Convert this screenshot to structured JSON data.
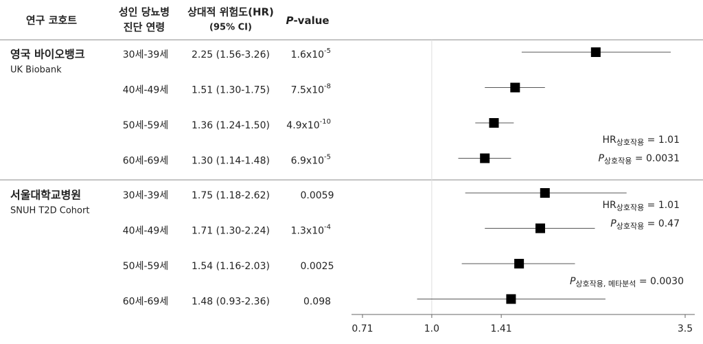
{
  "header": {
    "cohort": "연구 코호트",
    "age": [
      "성인 당뇨병",
      "진단 연령"
    ],
    "hr": [
      "상대적 위험도(HR)",
      "(95% CI)"
    ],
    "p": {
      "italic": "P",
      "rest": "-value"
    }
  },
  "chart_data": {
    "type": "forest",
    "xscale": "log",
    "xlim": [
      0.71,
      3.5
    ],
    "xticks": [
      0.71,
      {
        "value": 1,
        "label": "1.0"
      },
      1.41,
      3.5
    ],
    "reference": 1,
    "color": "#000000",
    "groups": [
      {
        "name": "영국 바이오뱅크",
        "subname": "UK Biobank",
        "rows": [
          {
            "age": "30세-39세",
            "hr": 2.25,
            "ci": [
              1.56,
              3.26
            ],
            "hr_label": "2.25 (1.56-3.26)",
            "p_label": {
              "base": "1.6x10",
              "exp": "-5"
            }
          },
          {
            "age": "40세-49세",
            "hr": 1.51,
            "ci": [
              1.3,
              1.75
            ],
            "hr_label": "1.51 (1.30-1.75)",
            "p_label": {
              "base": "7.5x10",
              "exp": "-8"
            }
          },
          {
            "age": "50세-59세",
            "hr": 1.36,
            "ci": [
              1.24,
              1.5
            ],
            "hr_label": "1.36 (1.24-1.50)",
            "p_label": {
              "base": "4.9x10",
              "exp": "-10"
            }
          },
          {
            "age": "60세-69세",
            "hr": 1.3,
            "ci": [
              1.14,
              1.48
            ],
            "hr_label": "1.30 (1.14-1.48)",
            "p_label": {
              "base": "6.9x10",
              "exp": "-5"
            }
          }
        ],
        "annotations": [
          {
            "symbol": "HR",
            "italic": false,
            "sub": "상호작용",
            "text": " = 1.01"
          },
          {
            "symbol": "P",
            "italic": true,
            "sub": "상호작용",
            "text": " = 0.0031"
          }
        ]
      },
      {
        "name": "서울대학교병원",
        "subname": "SNUH T2D Cohort",
        "rows": [
          {
            "age": "30세-39세",
            "hr": 1.75,
            "ci": [
              1.18,
              2.62
            ],
            "hr_label": "1.75 (1.18-2.62)",
            "p_label": "0.0059"
          },
          {
            "age": "40세-49세",
            "hr": 1.71,
            "ci": [
              1.3,
              2.24
            ],
            "hr_label": "1.71 (1.30-2.24)",
            "p_label": {
              "base": "1.3x10",
              "exp": "-4"
            }
          },
          {
            "age": "50세-59세",
            "hr": 1.54,
            "ci": [
              1.16,
              2.03
            ],
            "hr_label": "1.54 (1.16-2.03)",
            "p_label": "0.0025"
          },
          {
            "age": "60세-69세",
            "hr": 1.48,
            "ci": [
              0.93,
              2.36
            ],
            "hr_label": "1.48 (0.93-2.36)",
            "p_label": "0.098"
          }
        ],
        "annotations": [
          {
            "symbol": "HR",
            "italic": false,
            "sub": "상호작용",
            "text": " = 1.01"
          },
          {
            "symbol": "P",
            "italic": true,
            "sub": "상호작용",
            "text": " = 0.47"
          },
          {
            "symbol": "P",
            "italic": true,
            "sub": "상호작용, 메타분석",
            "text": " = 0.0030"
          }
        ]
      }
    ]
  }
}
